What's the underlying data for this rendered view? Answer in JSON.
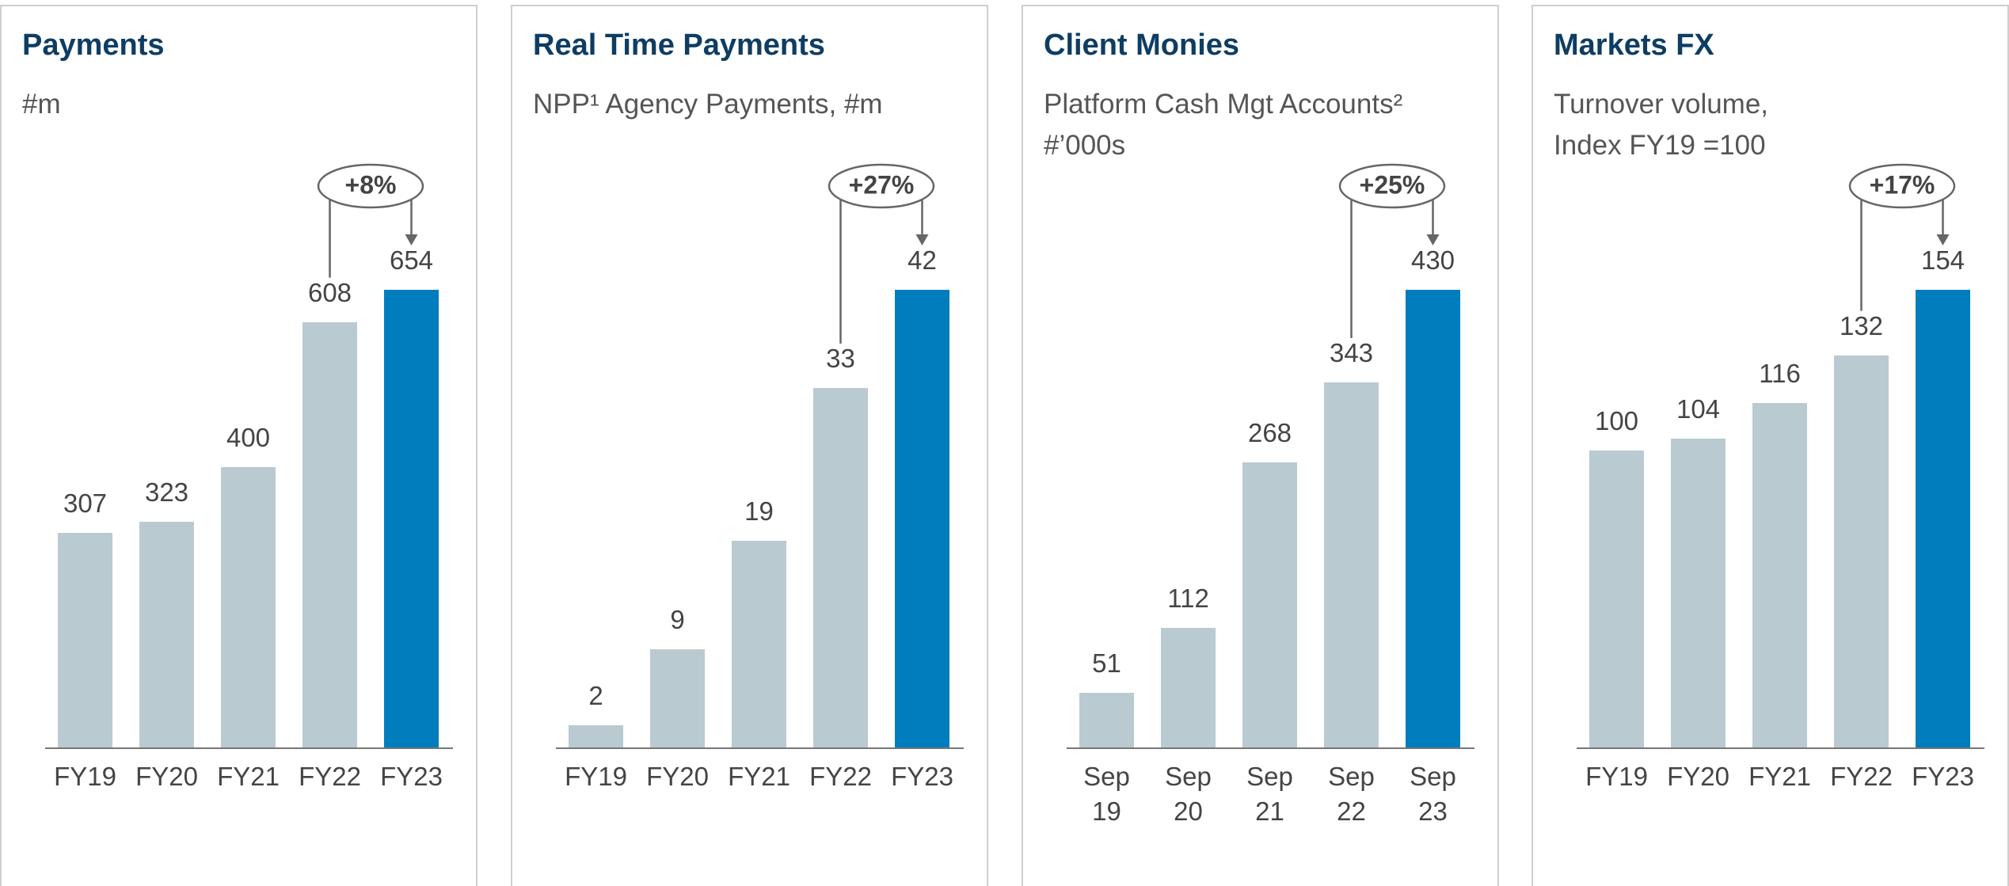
{
  "chart_data": [
    {
      "type": "bar",
      "title": "Payments",
      "subtitle": "#m",
      "categories": [
        "FY19",
        "FY20",
        "FY21",
        "FY22",
        "FY23"
      ],
      "values": [
        307,
        323,
        400,
        608,
        654
      ],
      "colors": [
        "#b9cad1",
        "#b9cad1",
        "#b9cad1",
        "#b9cad1",
        "#007dbd"
      ],
      "growth_label": "+8%"
    },
    {
      "type": "bar",
      "title": "Real Time Payments",
      "subtitle": "NPP¹ Agency Payments, #m",
      "categories": [
        "FY19",
        "FY20",
        "FY21",
        "FY22",
        "FY23"
      ],
      "values": [
        2,
        9,
        19,
        33,
        42
      ],
      "colors": [
        "#b9cad1",
        "#b9cad1",
        "#b9cad1",
        "#b9cad1",
        "#007dbd"
      ],
      "growth_label": "+27%"
    },
    {
      "type": "bar",
      "title": "Client Monies",
      "subtitle": "Platform Cash Mgt Accounts²\n#’000s",
      "categories": [
        "Sep 19",
        "Sep 20",
        "Sep 21",
        "Sep 22",
        "Sep 23"
      ],
      "values": [
        51,
        112,
        268,
        343,
        430
      ],
      "colors": [
        "#b9cad1",
        "#b9cad1",
        "#b9cad1",
        "#b9cad1",
        "#007dbd"
      ],
      "growth_label": "+25%"
    },
    {
      "type": "bar",
      "title": "Markets FX",
      "subtitle": "Turnover volume,\nIndex FY19 =100",
      "categories": [
        "FY19",
        "FY20",
        "FY21",
        "FY22",
        "FY23"
      ],
      "values": [
        100,
        104,
        116,
        132,
        154
      ],
      "colors": [
        "#b9cad1",
        "#b9cad1",
        "#b9cad1",
        "#b9cad1",
        "#007dbd"
      ],
      "growth_label": "+17%"
    }
  ]
}
